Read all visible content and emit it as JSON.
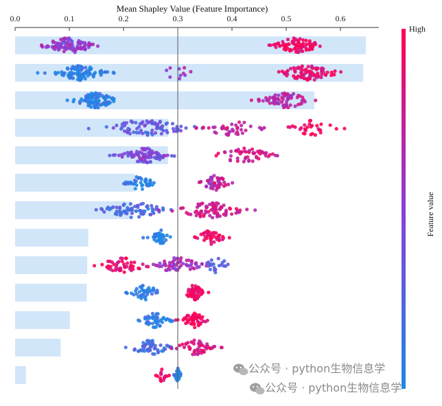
{
  "chart_data": {
    "type": "bar",
    "title": "Mean Shapley Value (Feature Importance)",
    "xlabel": "",
    "ylabel": "",
    "xlim": [
      0,
      0.65
    ],
    "xticks": [
      0.0,
      0.1,
      0.2,
      0.3,
      0.4,
      0.5,
      0.6
    ],
    "xtick_labels": [
      "0.0",
      "0.1",
      "0.2",
      "0.3",
      "0.4",
      "0.5",
      "0.6"
    ],
    "reference_line_x": 0.3,
    "orientation": "horizontal",
    "grid": false,
    "features": [
      "",
      "",
      "",
      "",
      "",
      "",
      "",
      "",
      "",
      "",
      "",
      "",
      ""
    ],
    "values": [
      0.647,
      0.642,
      0.552,
      0.283,
      0.282,
      0.22,
      0.213,
      0.135,
      0.133,
      0.132,
      0.101,
      0.084,
      0.02
    ],
    "beeswarm_overlay": [
      {
        "clusters": [
          {
            "center": 0.1,
            "spread": 0.055,
            "color": 0.55,
            "n": 90
          },
          {
            "center": 0.52,
            "spread": 0.05,
            "color": 0.95,
            "n": 80
          }
        ]
      },
      {
        "clusters": [
          {
            "center": 0.12,
            "spread": 0.05,
            "color": 0.05,
            "n": 90
          },
          {
            "center": 0.3,
            "spread": 0.03,
            "color": 0.6,
            "n": 10
          },
          {
            "center": 0.54,
            "spread": 0.06,
            "color": 0.9,
            "n": 80
          }
        ]
      },
      {
        "clusters": [
          {
            "center": 0.15,
            "spread": 0.045,
            "color": 0.05,
            "n": 90
          },
          {
            "center": 0.5,
            "spread": 0.05,
            "color": 0.7,
            "n": 70
          }
        ]
      },
      {
        "clusters": [
          {
            "center": 0.24,
            "spread": 0.1,
            "color": 0.3,
            "n": 80
          },
          {
            "center": 0.4,
            "spread": 0.07,
            "color": 0.75,
            "n": 40
          },
          {
            "center": 0.55,
            "spread": 0.06,
            "color": 0.95,
            "n": 30
          }
        ]
      },
      {
        "clusters": [
          {
            "center": 0.24,
            "spread": 0.05,
            "color": 0.45,
            "n": 90
          },
          {
            "center": 0.42,
            "spread": 0.06,
            "color": 0.8,
            "n": 50
          }
        ]
      },
      {
        "clusters": [
          {
            "center": 0.23,
            "spread": 0.03,
            "color": 0.05,
            "n": 40
          },
          {
            "center": 0.37,
            "spread": 0.03,
            "color": 0.7,
            "n": 50
          }
        ]
      },
      {
        "clusters": [
          {
            "center": 0.22,
            "spread": 0.07,
            "color": 0.2,
            "n": 70
          },
          {
            "center": 0.36,
            "spread": 0.07,
            "color": 0.8,
            "n": 80
          }
        ]
      },
      {
        "clusters": [
          {
            "center": 0.27,
            "spread": 0.02,
            "color": 0.05,
            "n": 40
          },
          {
            "center": 0.36,
            "spread": 0.03,
            "color": 0.95,
            "n": 40
          }
        ]
      },
      {
        "clusters": [
          {
            "center": 0.2,
            "spread": 0.05,
            "color": 0.9,
            "n": 50
          },
          {
            "center": 0.3,
            "spread": 0.05,
            "color": 0.6,
            "n": 60
          },
          {
            "center": 0.37,
            "spread": 0.03,
            "color": 0.3,
            "n": 20
          }
        ]
      },
      {
        "clusters": [
          {
            "center": 0.24,
            "spread": 0.03,
            "color": 0.05,
            "n": 40
          },
          {
            "center": 0.33,
            "spread": 0.02,
            "color": 0.95,
            "n": 50
          }
        ]
      },
      {
        "clusters": [
          {
            "center": 0.26,
            "spread": 0.03,
            "color": 0.05,
            "n": 45
          },
          {
            "center": 0.33,
            "spread": 0.025,
            "color": 0.95,
            "n": 50
          }
        ]
      },
      {
        "clusters": [
          {
            "center": 0.25,
            "spread": 0.04,
            "color": 0.2,
            "n": 50
          },
          {
            "center": 0.33,
            "spread": 0.04,
            "color": 0.85,
            "n": 50
          }
        ]
      },
      {
        "clusters": [
          {
            "center": 0.27,
            "spread": 0.012,
            "color": 0.95,
            "n": 15
          },
          {
            "center": 0.3,
            "spread": 0.006,
            "color": 0.05,
            "n": 25
          }
        ]
      }
    ],
    "colorbar": {
      "label": "Feature value",
      "high_label": "High",
      "low_color": "#1e88e5",
      "high_color": "#ff0052"
    },
    "bar_color": "#d2e6fa"
  },
  "watermark": {
    "line1": "公众号 · python生物信息学",
    "line2": "公众号 · python生物信息学"
  }
}
